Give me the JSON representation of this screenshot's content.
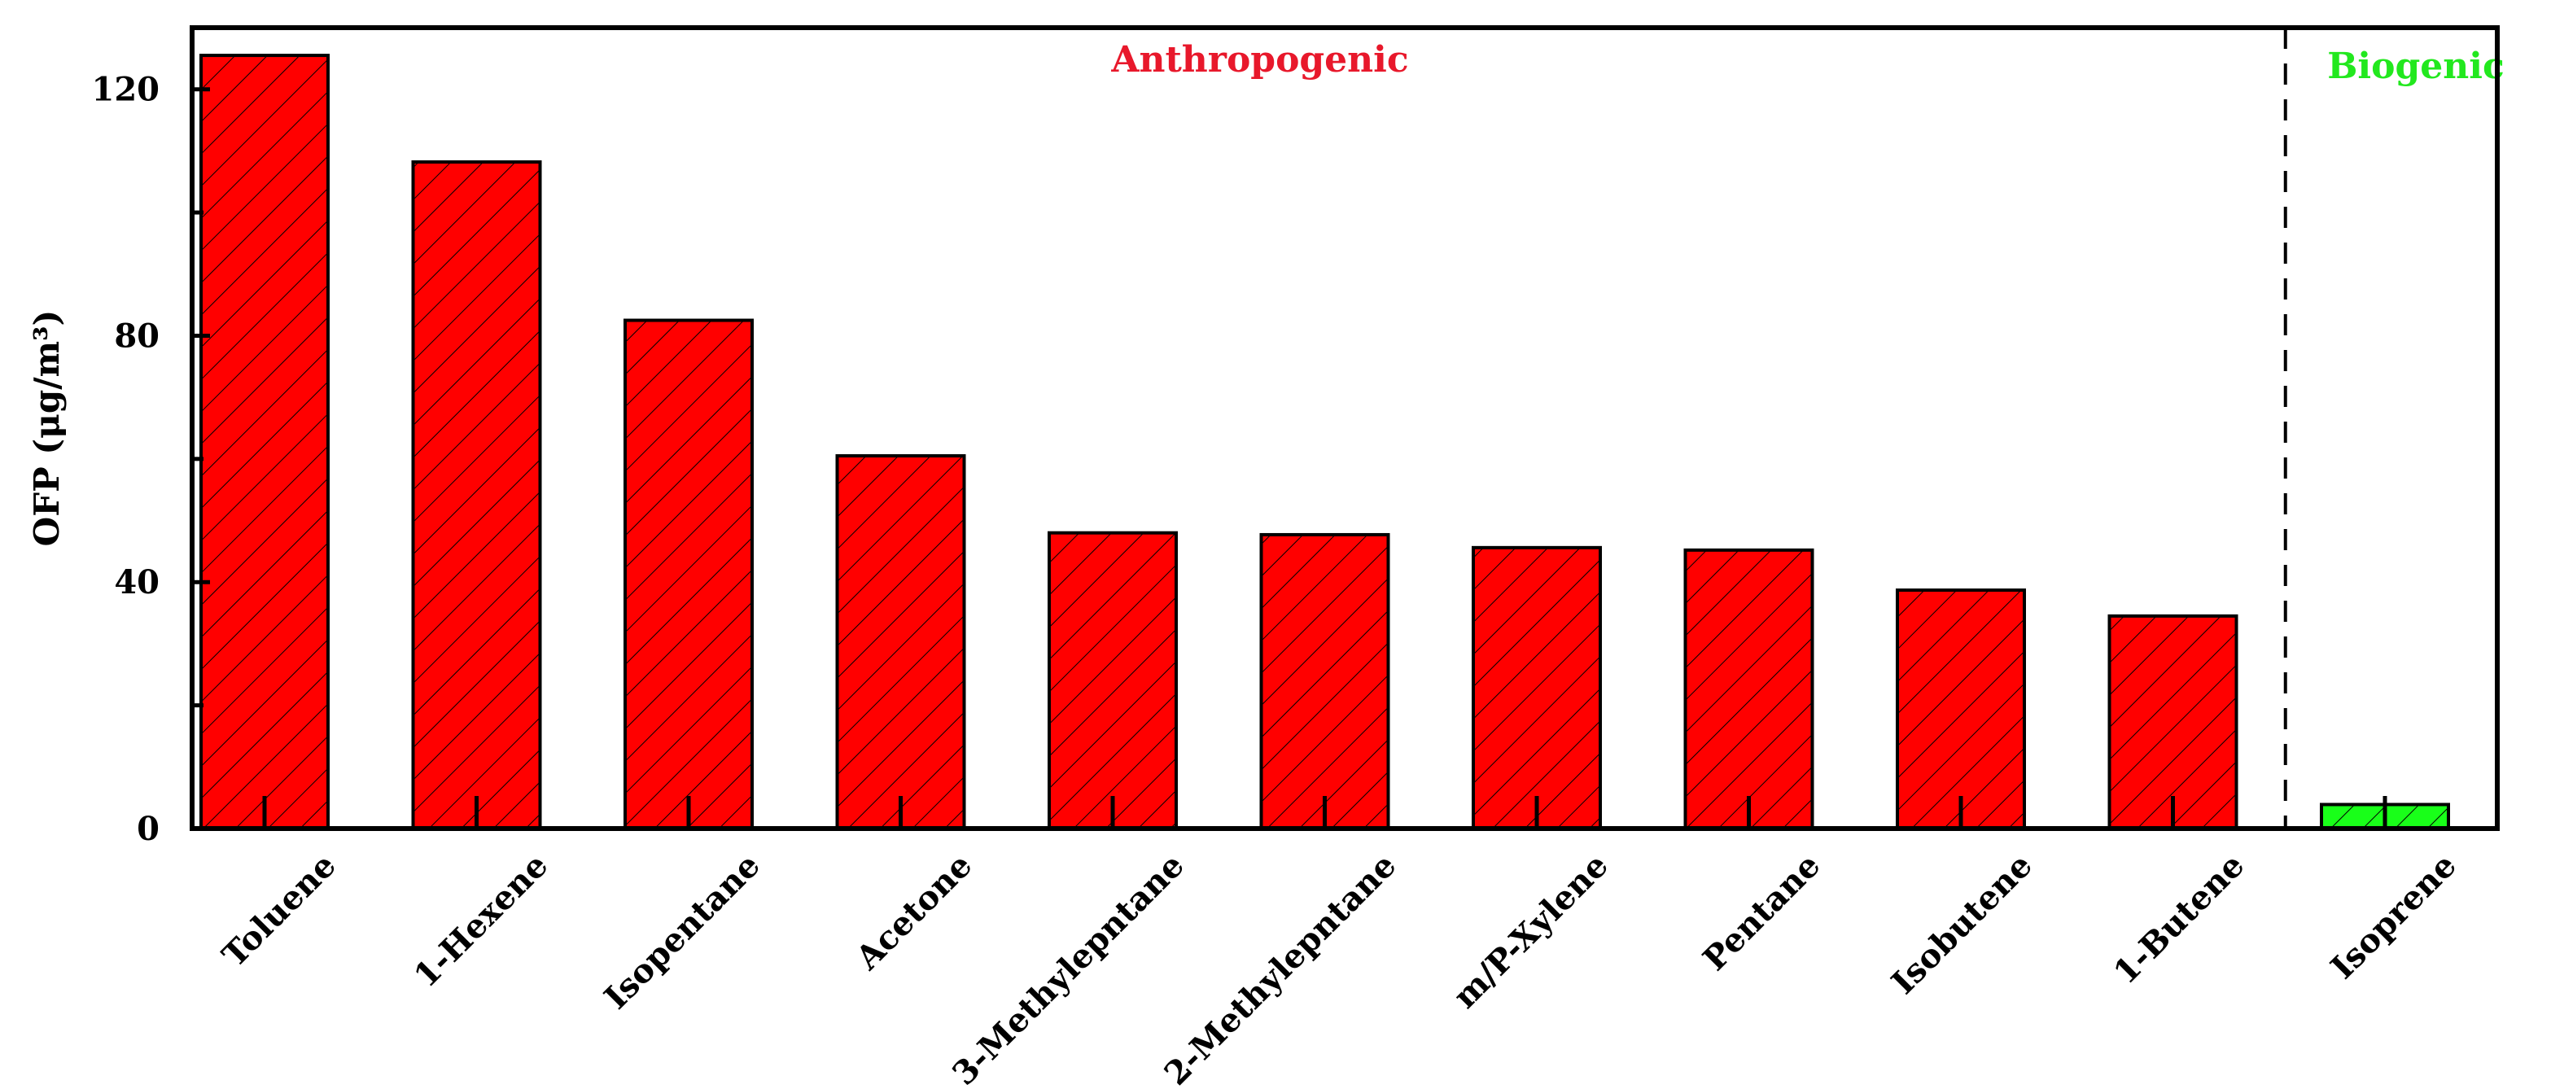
{
  "chart_data": {
    "type": "bar",
    "ylabel": "OFP (μg/m³)",
    "ylim": [
      0,
      130
    ],
    "yticks": [
      0,
      40,
      80,
      120
    ],
    "categories": [
      "Toluene",
      "1-Hexene",
      "Isopentane",
      "Acetone",
      "3-Methylepntane",
      "2-Methylepntane",
      "m/P-Xylene",
      "Pentane",
      "Isobutene",
      "1-Butene",
      "Isoprene"
    ],
    "values": [
      125.5,
      108.2,
      82.5,
      60.5,
      48.0,
      47.7,
      45.6,
      45.2,
      38.7,
      34.5,
      3.9
    ],
    "groups": [
      {
        "label": "Anthropogenic",
        "color": "#e8182b",
        "from": 0,
        "to": 9
      },
      {
        "label": "Biogenic",
        "color": "#22e81e",
        "from": 10,
        "to": 10
      }
    ],
    "bar_colors": [
      "#ff0000",
      "#ff0000",
      "#ff0000",
      "#ff0000",
      "#ff0000",
      "#ff0000",
      "#ff0000",
      "#ff0000",
      "#ff0000",
      "#ff0000",
      "#19ff19"
    ],
    "bar_pattern": "diagonal-hatch",
    "grid": false
  }
}
